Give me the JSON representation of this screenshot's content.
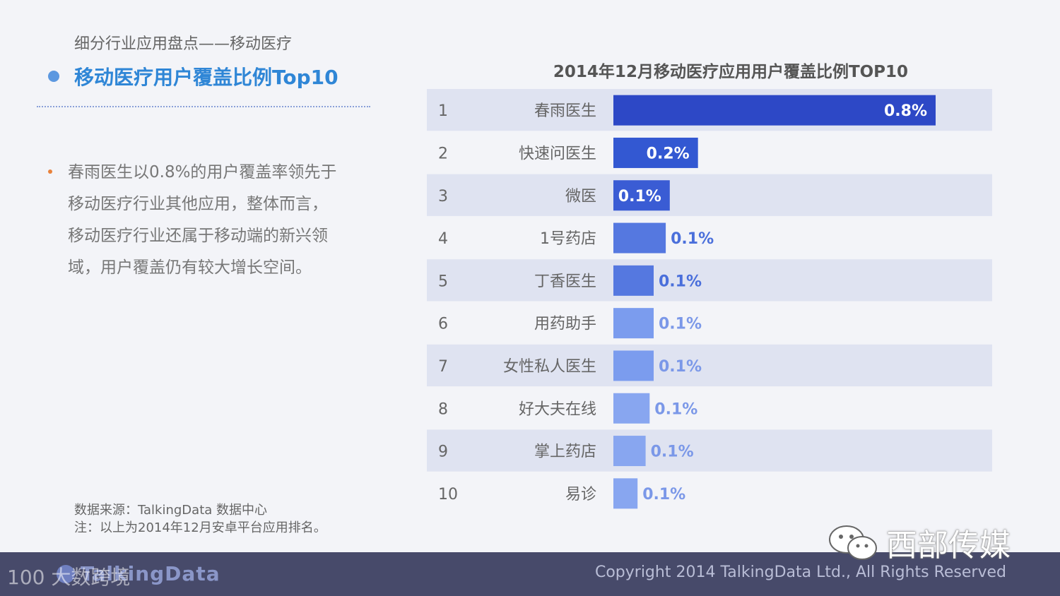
{
  "header": {
    "section_label": "细分行业应用盘点——移动医疗",
    "title": "移动医疗用户覆盖比例Top10"
  },
  "bullet": {
    "text": "春雨医生以0.8%的用户覆盖率领先于\n移动医疗行业其他应用，整体而言，\n移动医疗行业还属于移动端的新兴领\n域，用户覆盖仍有较大增长空间。"
  },
  "source": {
    "line1": "数据来源：TalkingData 数据中心",
    "line2": "注：以上为2014年12月安卓平台应用排名。"
  },
  "chart_data": {
    "type": "bar",
    "orientation": "horizontal",
    "title": "2014年12月移动医疗应用用户覆盖比例TOP10",
    "ranks": [
      "1",
      "2",
      "3",
      "4",
      "5",
      "6",
      "7",
      "8",
      "9",
      "10"
    ],
    "categories": [
      "春雨医生",
      "快速问医生",
      "微医",
      "1号药店",
      "丁香医生",
      "用药助手",
      "女性私人医生",
      "好大夫在线",
      "掌上药店",
      "易诊"
    ],
    "values": [
      0.8,
      0.21,
      0.14,
      0.13,
      0.1,
      0.1,
      0.1,
      0.09,
      0.08,
      0.06
    ],
    "value_labels": [
      "0.8%",
      "0.2%",
      "0.1%",
      "0.1%",
      "0.1%",
      "0.1%",
      "0.1%",
      "0.1%",
      "0.1%",
      "0.1%"
    ],
    "unit": "%",
    "xlim": [
      0,
      0.8
    ],
    "bar_colors": [
      "#2d48c6",
      "#3358d2",
      "#3a5cd4",
      "#5578e0",
      "#5578e0",
      "#7b9cee",
      "#7b9cee",
      "#88a6f0",
      "#88a6f0",
      "#88a6f0"
    ],
    "value_label_colors": [
      "#ffffff",
      "#ffffff",
      "#ffffff",
      "#4a6fdb",
      "#4a6fdb",
      "#7b98e8",
      "#7b98e8",
      "#7b98e8",
      "#7b98e8",
      "#7b98e8"
    ],
    "stripe_color": "#dfe3f1",
    "grid": false,
    "legend": "none"
  },
  "footer": {
    "logo": "TalkingData",
    "copyright": "Copyright 2014 TalkingData Ltd., All Rights Reserved"
  },
  "watermarks": {
    "left": "100 大数跨境",
    "right": "西部传媒"
  },
  "colors": {
    "title_blue": "#2f86d6",
    "footer_bg": "#474a6a",
    "bullet_orange": "#e8823c"
  }
}
